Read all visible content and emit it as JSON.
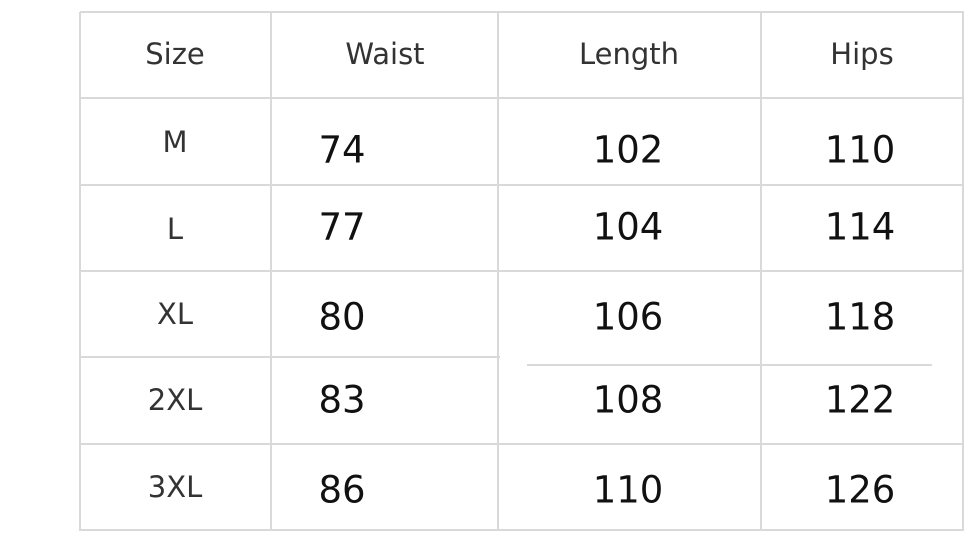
{
  "table": {
    "headers": [
      "Size",
      "Waist",
      "Length",
      "Hips"
    ],
    "rows": [
      {
        "size": "M",
        "waist": "74",
        "length": "102",
        "hips": "110"
      },
      {
        "size": "L",
        "waist": "77",
        "length": "104",
        "hips": "114"
      },
      {
        "size": "XL",
        "waist": "80",
        "length": "106",
        "hips": "118"
      },
      {
        "size": "2XL",
        "waist": "83",
        "length": "108",
        "hips": "122"
      },
      {
        "size": "3XL",
        "waist": "86",
        "length": "110",
        "hips": "126"
      }
    ]
  },
  "colors": {
    "grid": "#d9d9d9",
    "text": "#222222"
  }
}
